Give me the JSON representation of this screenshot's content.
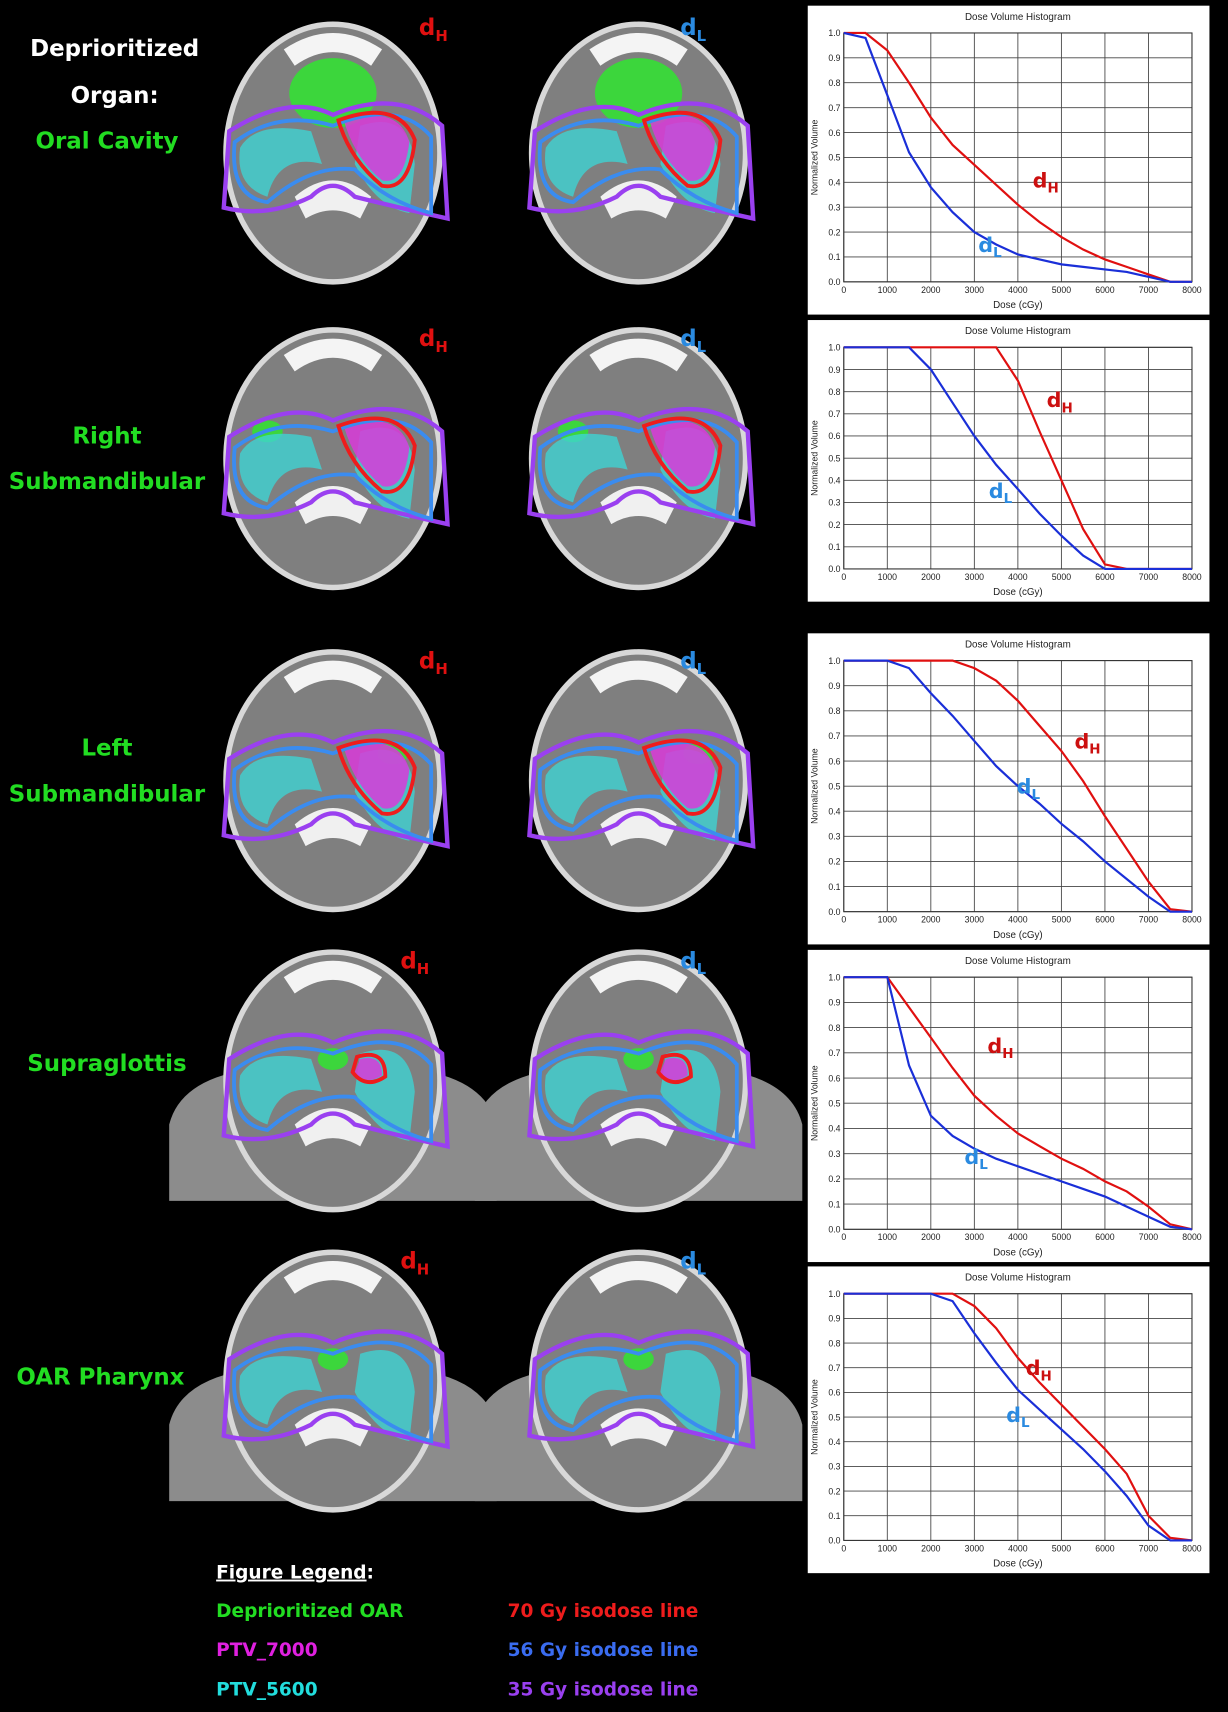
{
  "heading": [
    "Deprioritized",
    "Organ:"
  ],
  "rows": [
    {
      "organ": [
        "Oral Cavity"
      ],
      "high_label": {
        "text": "d",
        "sub": "H"
      },
      "low_label": {
        "text": "d",
        "sub": "L"
      }
    },
    {
      "organ": [
        "Right",
        "Submandibular"
      ],
      "high_label": {
        "text": "d",
        "sub": "H"
      },
      "low_label": {
        "text": "d",
        "sub": "L"
      }
    },
    {
      "organ": [
        "Left",
        "Submandibular"
      ],
      "high_label": {
        "text": "d",
        "sub": "H"
      },
      "low_label": {
        "text": "d",
        "sub": "L"
      }
    },
    {
      "organ": [
        "Supraglottis"
      ],
      "high_label": {
        "text": "d",
        "sub": "H"
      },
      "low_label": {
        "text": "d",
        "sub": "L"
      }
    },
    {
      "organ": [
        "OAR Pharynx"
      ],
      "high_label": {
        "text": "d",
        "sub": "H"
      },
      "low_label": {
        "text": "d",
        "sub": "L"
      }
    }
  ],
  "chart_data": [
    {
      "type": "line",
      "title": "Dose Volume Histogram",
      "x_label": "Dose (cGy)",
      "y_label": "Normalized Volume",
      "x": [
        0,
        500,
        1000,
        1500,
        2000,
        2500,
        3000,
        3500,
        4000,
        4500,
        5000,
        5500,
        6000,
        6500,
        7000,
        7500,
        8000
      ],
      "xlim": [
        0,
        8000
      ],
      "xticks": [
        0,
        1000,
        2000,
        3000,
        4000,
        5000,
        6000,
        7000,
        8000
      ],
      "ylim": [
        0,
        1
      ],
      "yticks": [
        {
          "value": 0,
          "label": "0.0"
        },
        0.1,
        0.2,
        0.3,
        0.4,
        0.5,
        0.6,
        0.7,
        0.8,
        0.9,
        {
          "value": 1,
          "label": "1.0"
        }
      ],
      "grid": true,
      "series": [
        {
          "name": "d",
          "name_sub": "H",
          "color": "#e01010",
          "values": [
            1,
            1,
            0.93,
            0.8,
            0.66,
            0.55,
            0.47,
            0.39,
            0.31,
            0.24,
            0.18,
            0.13,
            0.09,
            0.06,
            0.03,
            0,
            0
          ]
        },
        {
          "name": "d",
          "name_sub": "L",
          "color": "#1a2fd8",
          "values": [
            1,
            0.98,
            0.75,
            0.52,
            0.38,
            0.28,
            0.2,
            0.15,
            0.11,
            0.09,
            0.07,
            0.06,
            0.05,
            0.04,
            0.02,
            0,
            0
          ]
        }
      ]
    },
    {
      "type": "line",
      "title": "Dose Volume Histogram",
      "x_label": "Dose (cGy)",
      "y_label": "Normalized Volume",
      "x": [
        0,
        500,
        1000,
        1500,
        2000,
        2500,
        3000,
        3500,
        4000,
        4500,
        5000,
        5500,
        6000,
        6500,
        7000,
        7500,
        8000
      ],
      "xlim": [
        0,
        8000
      ],
      "xticks": [
        0,
        1000,
        2000,
        3000,
        4000,
        5000,
        6000,
        7000,
        8000
      ],
      "ylim": [
        0,
        1
      ],
      "yticks": [
        {
          "value": 0,
          "label": "0.0"
        },
        0.1,
        0.2,
        0.3,
        0.4,
        0.5,
        0.6,
        0.7,
        0.8,
        0.9,
        {
          "value": 1,
          "label": "1.0"
        }
      ],
      "grid": true,
      "series": [
        {
          "name": "d",
          "name_sub": "H",
          "color": "#e01010",
          "values": [
            1,
            1,
            1,
            1,
            1,
            1,
            1,
            1,
            0.85,
            0.62,
            0.4,
            0.18,
            0.02,
            0,
            0,
            0,
            0
          ]
        },
        {
          "name": "d",
          "name_sub": "L",
          "color": "#1a2fd8",
          "values": [
            1,
            1,
            1,
            1,
            0.9,
            0.75,
            0.6,
            0.47,
            0.36,
            0.25,
            0.15,
            0.06,
            0,
            0,
            0,
            0,
            0
          ]
        }
      ]
    },
    {
      "type": "line",
      "title": "Dose Volume Histogram",
      "x_label": "Dose (cGy)",
      "y_label": "Normalized Volume",
      "x": [
        0,
        500,
        1000,
        1500,
        2000,
        2500,
        3000,
        3500,
        4000,
        4500,
        5000,
        5500,
        6000,
        6500,
        7000,
        7500,
        8000
      ],
      "xlim": [
        0,
        8000
      ],
      "xticks": [
        0,
        1000,
        2000,
        3000,
        4000,
        5000,
        6000,
        7000,
        8000
      ],
      "ylim": [
        0,
        1
      ],
      "yticks": [
        {
          "value": 0,
          "label": "0.0"
        },
        0.1,
        0.2,
        0.3,
        0.4,
        0.5,
        0.6,
        0.7,
        0.8,
        0.9,
        {
          "value": 1,
          "label": "1.0"
        }
      ],
      "grid": true,
      "series": [
        {
          "name": "d",
          "name_sub": "H",
          "color": "#e01010",
          "values": [
            1,
            1,
            1,
            1,
            1,
            1,
            0.97,
            0.92,
            0.84,
            0.74,
            0.64,
            0.52,
            0.38,
            0.25,
            0.12,
            0.01,
            0
          ]
        },
        {
          "name": "d",
          "name_sub": "L",
          "color": "#1a2fd8",
          "values": [
            1,
            1,
            1,
            0.97,
            0.87,
            0.78,
            0.68,
            0.58,
            0.5,
            0.43,
            0.35,
            0.28,
            0.2,
            0.13,
            0.06,
            0,
            0
          ]
        }
      ]
    },
    {
      "type": "line",
      "title": "Dose Volume Histogram",
      "x_label": "Dose (cGy)",
      "y_label": "Normalized Volume",
      "x": [
        0,
        500,
        1000,
        1500,
        2000,
        2500,
        3000,
        3500,
        4000,
        4500,
        5000,
        5500,
        6000,
        6500,
        7000,
        7500,
        8000
      ],
      "xlim": [
        0,
        8000
      ],
      "xticks": [
        0,
        1000,
        2000,
        3000,
        4000,
        5000,
        6000,
        7000,
        8000
      ],
      "ylim": [
        0,
        1
      ],
      "yticks": [
        {
          "value": 0,
          "label": "0.0"
        },
        0.1,
        0.2,
        0.3,
        0.4,
        0.5,
        0.6,
        0.7,
        0.8,
        0.9,
        {
          "value": 1,
          "label": "1.0"
        }
      ],
      "grid": true,
      "series": [
        {
          "name": "d",
          "name_sub": "H",
          "color": "#e01010",
          "values": [
            1,
            1,
            1,
            0.88,
            0.76,
            0.64,
            0.53,
            0.45,
            0.38,
            0.33,
            0.28,
            0.24,
            0.19,
            0.15,
            0.09,
            0.02,
            0
          ]
        },
        {
          "name": "d",
          "name_sub": "L",
          "color": "#1a2fd8",
          "values": [
            1,
            1,
            1,
            0.65,
            0.45,
            0.37,
            0.32,
            0.28,
            0.25,
            0.22,
            0.19,
            0.16,
            0.13,
            0.09,
            0.05,
            0.01,
            0
          ]
        }
      ]
    },
    {
      "type": "line",
      "title": "Dose Volume Histogram",
      "x_label": "Dose (cGy)",
      "y_label": "Normalized Volume",
      "x": [
        0,
        500,
        1000,
        1500,
        2000,
        2500,
        3000,
        3500,
        4000,
        4500,
        5000,
        5500,
        6000,
        6500,
        7000,
        7500,
        8000
      ],
      "xlim": [
        0,
        8000
      ],
      "xticks": [
        0,
        1000,
        2000,
        3000,
        4000,
        5000,
        6000,
        7000,
        8000
      ],
      "ylim": [
        0,
        1
      ],
      "yticks": [
        {
          "value": 0,
          "label": "0.0"
        },
        0.1,
        0.2,
        0.3,
        0.4,
        0.5,
        0.6,
        0.7,
        0.8,
        0.9,
        {
          "value": 1,
          "label": "1.0"
        }
      ],
      "grid": true,
      "series": [
        {
          "name": "d",
          "name_sub": "H",
          "color": "#e01010",
          "values": [
            1,
            1,
            1,
            1,
            1,
            1,
            0.95,
            0.86,
            0.74,
            0.64,
            0.55,
            0.46,
            0.37,
            0.27,
            0.1,
            0.01,
            0
          ]
        },
        {
          "name": "d",
          "name_sub": "L",
          "color": "#1a2fd8",
          "values": [
            1,
            1,
            1,
            1,
            1,
            0.97,
            0.84,
            0.72,
            0.61,
            0.53,
            0.45,
            0.37,
            0.28,
            0.18,
            0.06,
            0,
            0
          ]
        }
      ]
    }
  ],
  "legend": {
    "title": "Figure Legend",
    "title_suffix": ":",
    "items": [
      {
        "text": "Deprioritized OAR",
        "color": "#22dd22"
      },
      {
        "text": "PTV_7000",
        "color": "#e020e0"
      },
      {
        "text": "PTV_5600",
        "color": "#22dddd"
      },
      {
        "text": "70 Gy isodose line",
        "color": "#ee1c1c"
      },
      {
        "text": "56 Gy isodose line",
        "color": "#3a6cf0"
      },
      {
        "text": "35 Gy isodose line",
        "color": "#9a40f0"
      }
    ]
  }
}
